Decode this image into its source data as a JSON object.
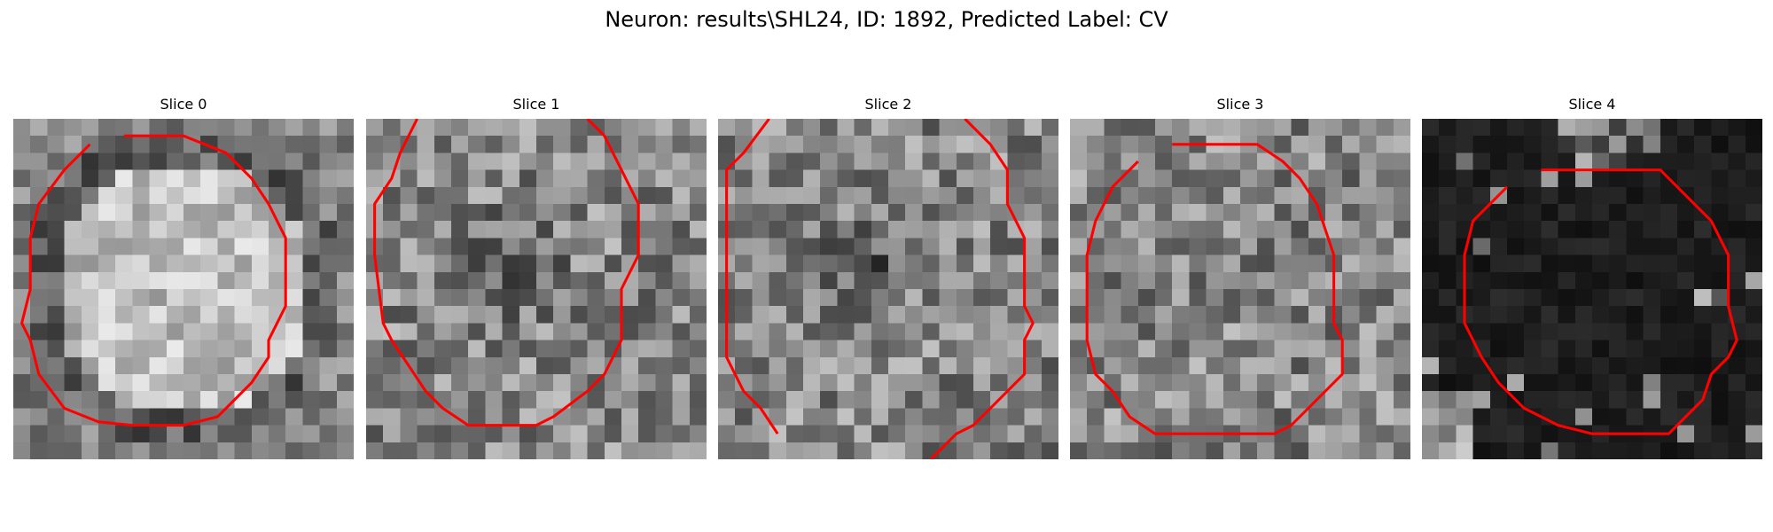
{
  "figure": {
    "title": "Neuron: results\\SHL24, ID: 1892, Predicted Label: CV",
    "contour_color": "#ff0000"
  },
  "slices": [
    {
      "title": "Slice 0",
      "brightness": "bright",
      "contour": [
        [
          6.5,
          1
        ],
        [
          10,
          1
        ],
        [
          12.5,
          2
        ],
        [
          14,
          3.5
        ],
        [
          15,
          5
        ],
        [
          16,
          7
        ],
        [
          16,
          11
        ],
        [
          15,
          13
        ],
        [
          15,
          14
        ],
        [
          14,
          15.5
        ],
        [
          12,
          17.5
        ],
        [
          10,
          18
        ],
        [
          7,
          18
        ],
        [
          5,
          17.8
        ],
        [
          3,
          17
        ],
        [
          1.5,
          15
        ],
        [
          1,
          13
        ],
        [
          0.5,
          12
        ],
        [
          1,
          10
        ],
        [
          1,
          7
        ],
        [
          1.5,
          5
        ],
        [
          3,
          3
        ],
        [
          4.5,
          1.5
        ]
      ]
    },
    {
      "title": "Slice 1",
      "brightness": "mid",
      "contour": [
        [
          3,
          0
        ],
        [
          2,
          2
        ],
        [
          1.5,
          3.5
        ],
        [
          0.5,
          5
        ],
        [
          0.5,
          8
        ],
        [
          1,
          12
        ],
        [
          1.5,
          13
        ],
        [
          2.5,
          14.5
        ],
        [
          3.5,
          16
        ],
        [
          4.5,
          17
        ],
        [
          6,
          18
        ],
        [
          10,
          18
        ],
        [
          11,
          17.5
        ],
        [
          13,
          16
        ],
        [
          14,
          15
        ],
        [
          15,
          13
        ],
        [
          15,
          10
        ],
        [
          16,
          8
        ],
        [
          16,
          5
        ],
        [
          15,
          3
        ],
        [
          14,
          1
        ],
        [
          13,
          0
        ]
      ]
    },
    {
      "title": "Slice 2",
      "brightness": "mid",
      "contour": [
        [
          3,
          0
        ],
        [
          1.5,
          2
        ],
        [
          0.5,
          3
        ],
        [
          0.5,
          5
        ],
        [
          0.5,
          14
        ],
        [
          1.5,
          16
        ],
        [
          2.5,
          17
        ],
        [
          3.5,
          18.5
        ]
      ]
    },
    {
      "title": "Slice 3",
      "brightness": "mid",
      "contour": [
        [
          6,
          1.5
        ],
        [
          11,
          1.5
        ],
        [
          12.5,
          2.5
        ],
        [
          13.5,
          3.5
        ],
        [
          14.5,
          5
        ],
        [
          15,
          6.5
        ],
        [
          15.5,
          8
        ],
        [
          15.5,
          12
        ],
        [
          16,
          13
        ],
        [
          16,
          15
        ],
        [
          15,
          16
        ],
        [
          14,
          17
        ],
        [
          13,
          18
        ],
        [
          12,
          18.5
        ],
        [
          5,
          18.5
        ],
        [
          3.5,
          17.5
        ],
        [
          2.5,
          16
        ],
        [
          1.5,
          15
        ],
        [
          1,
          13
        ],
        [
          1,
          8
        ],
        [
          1.5,
          6
        ],
        [
          2.5,
          4
        ],
        [
          4,
          2.5
        ]
      ]
    },
    {
      "title": "Slice 4",
      "brightness": "dark",
      "contour": [
        [
          7,
          3
        ],
        [
          14,
          3
        ],
        [
          15,
          4
        ],
        [
          16,
          5
        ],
        [
          17,
          6
        ],
        [
          18,
          8
        ],
        [
          18,
          11
        ],
        [
          18.5,
          13
        ],
        [
          18,
          14
        ],
        [
          17,
          15
        ],
        [
          16.5,
          16.5
        ],
        [
          15.5,
          17.5
        ],
        [
          14.5,
          18.5
        ],
        [
          10,
          18.5
        ],
        [
          8,
          18
        ],
        [
          6,
          17
        ],
        [
          4.5,
          15.5
        ],
        [
          3.5,
          14
        ],
        [
          3,
          13
        ],
        [
          2.5,
          12
        ],
        [
          2.5,
          8
        ],
        [
          3,
          6
        ],
        [
          4,
          5
        ],
        [
          5,
          4
        ]
      ]
    }
  ]
}
